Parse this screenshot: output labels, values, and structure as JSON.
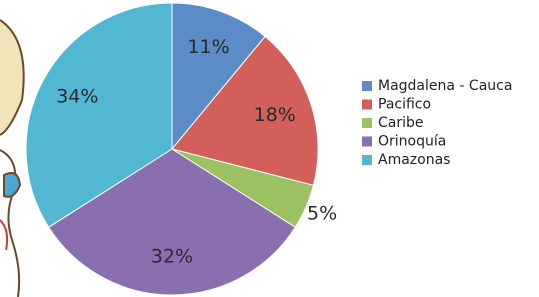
{
  "chart_data": {
    "type": "pie",
    "categories": [
      "Magdalena - Cauca",
      "Pacifico",
      "Caribe",
      "Orinoquía",
      "Amazonas"
    ],
    "values": [
      11,
      18,
      5,
      32,
      34
    ],
    "value_labels": [
      "11%",
      "18%",
      "5%",
      "32%",
      "34%"
    ],
    "colors": [
      "#5b8cc8",
      "#d35f5a",
      "#9cc163",
      "#8a6fae",
      "#52b7d0"
    ],
    "legend": "right"
  }
}
